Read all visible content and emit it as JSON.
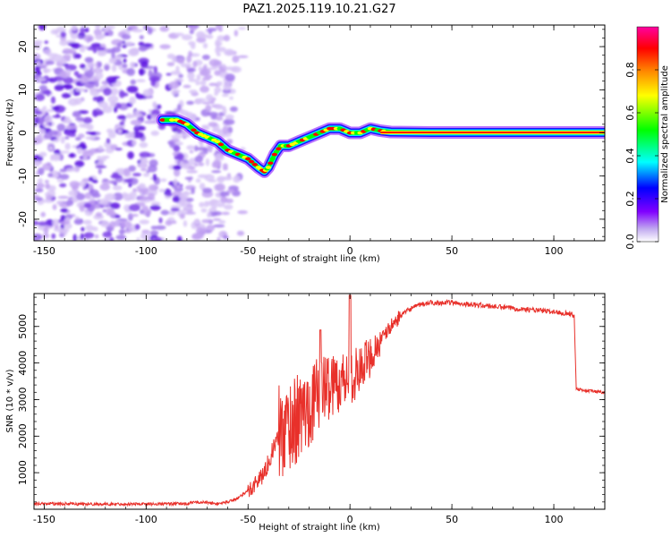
{
  "figure_title": "PAZ1.2025.119.10.21.G27",
  "chart_data": [
    {
      "type": "heatmap",
      "xlabel": "Height of straight line (km)",
      "ylabel": "Frequency (Hz)",
      "xlim": [
        -155,
        125
      ],
      "ylim": [
        -25,
        25
      ],
      "x_ticks": [
        -150,
        -100,
        -50,
        0,
        50,
        100
      ],
      "y_ticks": [
        -20,
        -10,
        0,
        10,
        20
      ],
      "colorbar": {
        "label": "Normalized spectral amplitude",
        "range": [
          0.0,
          1.0
        ],
        "ticks": [
          "0.0",
          "0.2",
          "0.4",
          "0.6",
          "0.8"
        ],
        "tick_values": [
          0.0,
          0.2,
          0.4,
          0.6,
          0.8
        ],
        "colors": [
          "#ffffff",
          "#c0a8f0",
          "#8000ff",
          "#0000ff",
          "#00ffff",
          "#00ff00",
          "#ffff00",
          "#ff8000",
          "#ff0000",
          "#ff00a0"
        ]
      },
      "ridge": {
        "x": [
          -92,
          -85,
          -80,
          -75,
          -70,
          -65,
          -60,
          -55,
          -50,
          -45,
          -42,
          -40,
          -37,
          -34,
          -30,
          -25,
          -20,
          -15,
          -10,
          -5,
          0,
          5,
          10,
          15,
          20,
          40,
          60,
          80,
          100,
          125
        ],
        "y": [
          3,
          3,
          2,
          0,
          -1,
          -2,
          -4,
          -5,
          -6,
          -8,
          -9,
          -8,
          -5,
          -3,
          -3,
          -2,
          -1,
          0,
          1,
          1,
          0,
          0,
          1,
          0.5,
          0.2,
          0.1,
          0.1,
          0.1,
          0.1,
          0.1
        ]
      },
      "noise_region_x": [
        -155,
        -52
      ],
      "noise_colors": [
        "#d8c6f7",
        "#c3a4f2",
        "#a078ec",
        "#7d40e8",
        "#5a10e0"
      ]
    },
    {
      "type": "line",
      "xlabel": "Height of straight line (km)",
      "ylabel": "SNR (10 * v/v)",
      "xlim": [
        -155,
        125
      ],
      "ylim": [
        0,
        5900
      ],
      "x_ticks": [
        -150,
        -100,
        -50,
        0,
        50,
        100
      ],
      "y_ticks": [
        1000,
        2000,
        3000,
        4000,
        5000
      ],
      "color": "#e8302a",
      "series": [
        {
          "x": [
            -155,
            -120,
            -80,
            -75,
            -70,
            -65,
            -60,
            -55,
            -50,
            -45,
            -42,
            -40,
            -38,
            -35,
            -30,
            -25,
            -20,
            -15,
            -10,
            -5,
            0,
            5,
            10,
            15,
            20,
            25,
            30,
            35,
            40,
            50,
            60,
            70,
            80,
            90,
            100,
            108,
            110,
            111,
            115,
            125
          ],
          "y": [
            150,
            140,
            150,
            200,
            180,
            150,
            200,
            300,
            500,
            800,
            1000,
            1300,
            1600,
            2000,
            2300,
            2500,
            2800,
            3200,
            3400,
            3500,
            3600,
            3800,
            4200,
            4600,
            5000,
            5300,
            5500,
            5600,
            5650,
            5650,
            5600,
            5550,
            5500,
            5450,
            5400,
            5350,
            5300,
            3300,
            3250,
            3200
          ]
        }
      ]
    }
  ]
}
